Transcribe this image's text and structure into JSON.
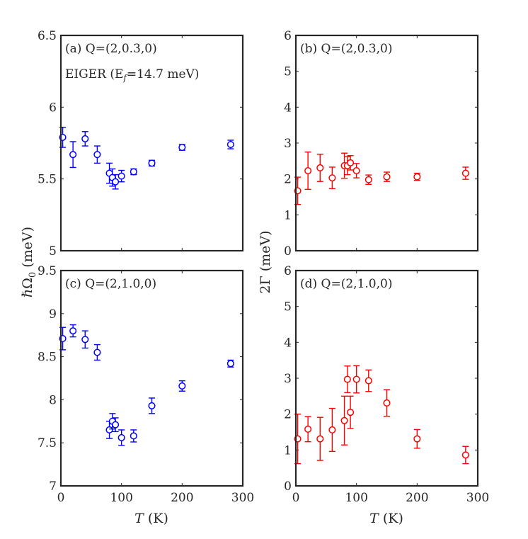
{
  "chart_data": [
    {
      "id": "a",
      "type": "scatter",
      "panel_label": "(a) Q=(2,0.3,0)",
      "annotation": "EIGER (E_f=14.7 meV)",
      "annotation_parts": {
        "pre": "EIGER (E",
        "sub": "f",
        "post": "=14.7 meV)"
      },
      "color": "#0000ff",
      "xlim": [
        0,
        300
      ],
      "ylim": [
        5,
        6.5
      ],
      "xticks": [
        0,
        100,
        200,
        300
      ],
      "yticks": [
        5,
        5.5,
        6,
        6.5
      ],
      "ytick_labels": [
        "5",
        "5.5",
        "6",
        "6.5"
      ],
      "x": [
        3,
        20,
        40,
        60,
        80,
        85,
        90,
        100,
        120,
        150,
        200,
        280
      ],
      "y": [
        5.79,
        5.67,
        5.78,
        5.67,
        5.54,
        5.51,
        5.48,
        5.52,
        5.55,
        5.61,
        5.72,
        5.74
      ],
      "err": [
        0.07,
        0.09,
        0.05,
        0.06,
        0.07,
        0.06,
        0.05,
        0.04,
        0.02,
        0.02,
        0.02,
        0.03
      ]
    },
    {
      "id": "b",
      "type": "scatter",
      "panel_label": "(b) Q=(2,0.3,0)",
      "color": "#ff0000",
      "xlim": [
        0,
        300
      ],
      "ylim": [
        0,
        6
      ],
      "xticks": [
        0,
        100,
        200,
        300
      ],
      "yticks": [
        0,
        1,
        2,
        3,
        4,
        5,
        6
      ],
      "ytick_labels": [
        "0",
        "1",
        "2",
        "3",
        "4",
        "5",
        "6"
      ],
      "x": [
        3,
        20,
        40,
        60,
        80,
        85,
        90,
        100,
        120,
        150,
        200,
        280
      ],
      "y": [
        1.67,
        2.23,
        2.31,
        2.03,
        2.37,
        2.37,
        2.45,
        2.23,
        1.98,
        2.06,
        2.06,
        2.16
      ],
      "err": [
        0.38,
        0.52,
        0.38,
        0.3,
        0.35,
        0.25,
        0.2,
        0.2,
        0.13,
        0.13,
        0.1,
        0.17
      ]
    },
    {
      "id": "c",
      "type": "scatter",
      "panel_label": "(c) Q=(2,1.0,0)",
      "color": "#0000ff",
      "xlim": [
        0,
        300
      ],
      "ylim": [
        7,
        9.5
      ],
      "xticks": [
        0,
        100,
        200,
        300
      ],
      "xtick_labels": [
        "0",
        "100",
        "200",
        "300"
      ],
      "yticks": [
        7,
        7.5,
        8,
        8.5,
        9,
        9.5
      ],
      "ytick_labels": [
        "7",
        "7.5",
        "8",
        "8.5",
        "9",
        "9.5"
      ],
      "x": [
        3,
        20,
        40,
        60,
        80,
        85,
        90,
        100,
        120,
        150,
        200,
        280
      ],
      "y": [
        8.71,
        8.8,
        8.7,
        8.55,
        7.65,
        7.75,
        7.71,
        7.56,
        7.58,
        7.93,
        8.16,
        8.42
      ],
      "err": [
        0.13,
        0.07,
        0.1,
        0.09,
        0.1,
        0.09,
        0.08,
        0.09,
        0.07,
        0.09,
        0.06,
        0.04
      ]
    },
    {
      "id": "d",
      "type": "scatter",
      "panel_label": "(d) Q=(2,1.0,0)",
      "color": "#ff0000",
      "xlim": [
        0,
        300
      ],
      "ylim": [
        0,
        6
      ],
      "xticks": [
        0,
        100,
        200,
        300
      ],
      "xtick_labels": [
        "0",
        "100",
        "200",
        "300"
      ],
      "yticks": [
        0,
        1,
        2,
        3,
        4,
        5,
        6
      ],
      "ytick_labels": [
        "0",
        "1",
        "2",
        "3",
        "4",
        "5",
        "6"
      ],
      "x": [
        3,
        20,
        40,
        60,
        80,
        85,
        90,
        100,
        120,
        150,
        200,
        280
      ],
      "y": [
        1.31,
        1.58,
        1.31,
        1.56,
        1.82,
        2.97,
        2.05,
        2.97,
        2.93,
        2.31,
        1.31,
        0.86
      ],
      "err": [
        0.69,
        0.35,
        0.6,
        0.6,
        0.68,
        0.37,
        0.45,
        0.38,
        0.3,
        0.37,
        0.26,
        0.24
      ]
    }
  ],
  "axes": {
    "ylabel_left": "ℏΩ₀ (meV)",
    "ylabel_left_parts": {
      "hbar": "ℏ",
      "omega": "Ω",
      "sub": "0",
      "unit": " (meV)"
    },
    "ylabel_right": "2Γ (meV)",
    "xlabel": "T (K)",
    "xlabel_parts": {
      "var": "T",
      "unit": " (K)"
    }
  }
}
